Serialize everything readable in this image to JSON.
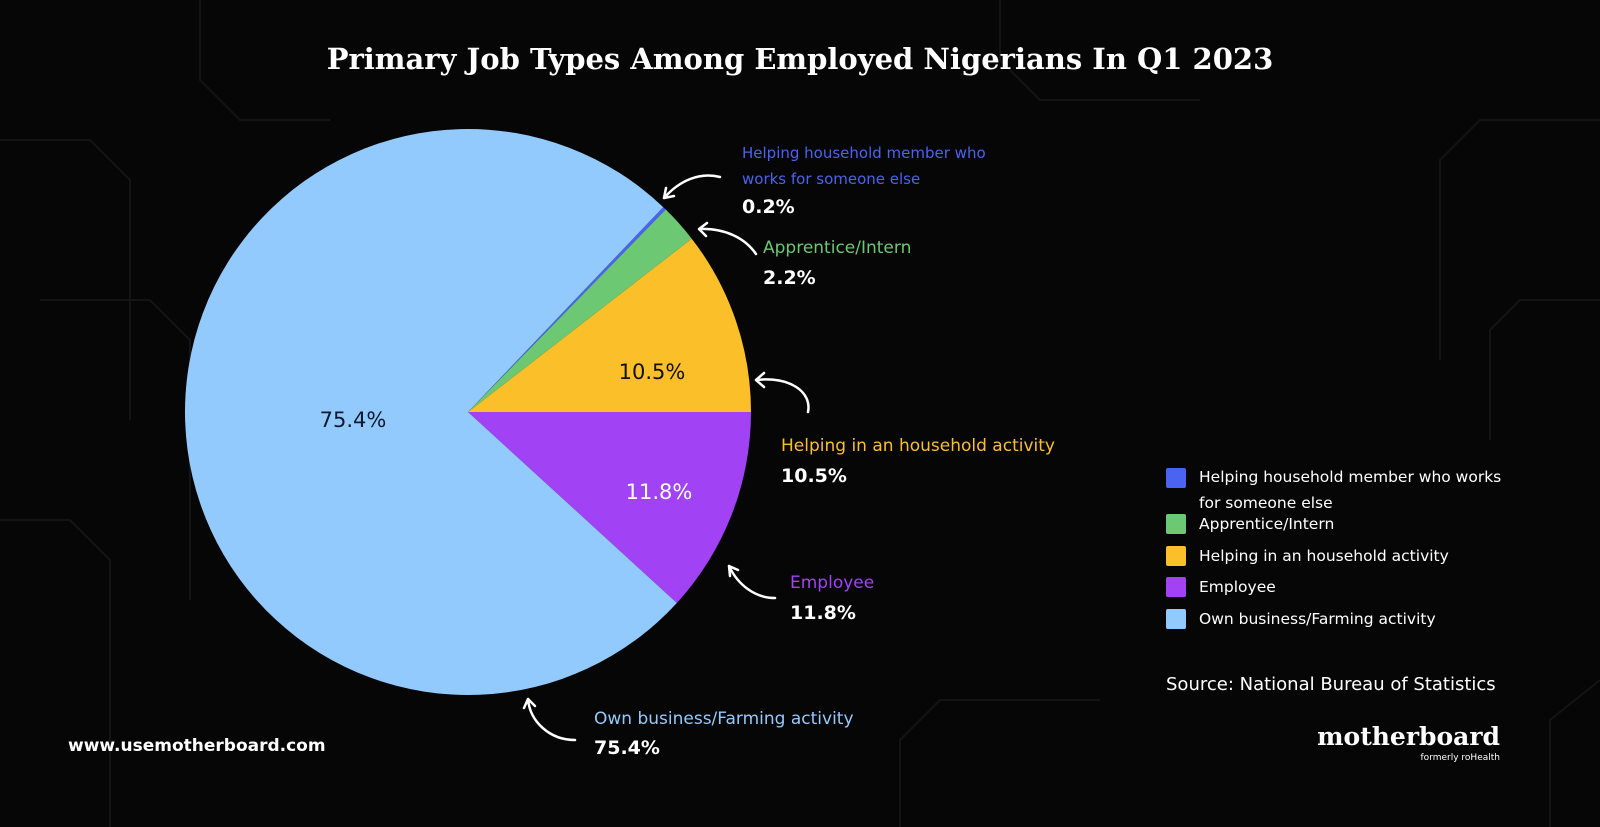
{
  "chart_data": {
    "type": "pie",
    "title": "Primary Job Types Among Employed Nigerians In Q1 2023",
    "categories": [
      "Helping household member who works for someone else",
      "Apprentice/Intern",
      "Helping in an household activity",
      "Employee",
      "Own business/Farming activity"
    ],
    "values": [
      0.2,
      2.2,
      10.5,
      11.8,
      75.4
    ],
    "value_labels": [
      "0.2%",
      "2.2%",
      "10.5%",
      "11.8%",
      "75.4%"
    ],
    "colors": [
      "#4a63f0",
      "#6cc872",
      "#fbbf2a",
      "#a142f4",
      "#93cafd"
    ],
    "source": "Source: National Bureau of Statistics",
    "website": "www.usemotherboard.com",
    "brand": "motherboard",
    "brand_tagline": "formerly roHealth"
  }
}
